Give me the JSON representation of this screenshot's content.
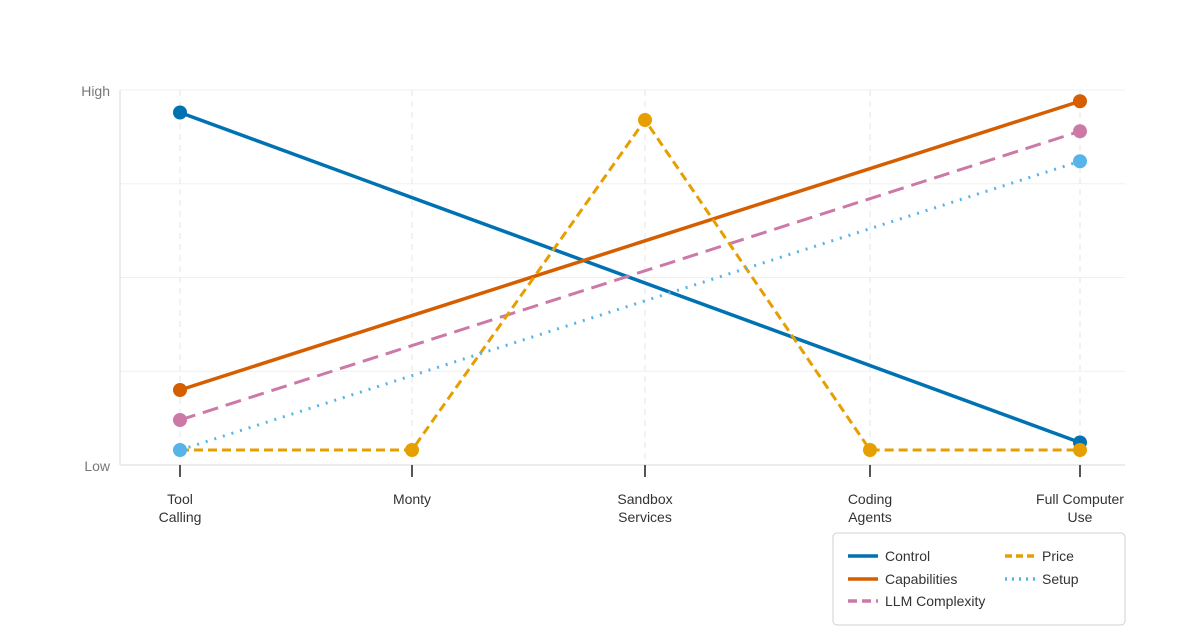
{
  "chart_data": {
    "type": "line",
    "title": "",
    "xlabel": "",
    "ylabel": "",
    "categories": [
      [
        "Tool",
        "Calling"
      ],
      [
        "Monty"
      ],
      [
        "Sandbox",
        "Services"
      ],
      [
        "Coding",
        "Agents"
      ],
      [
        "Full Computer",
        "Use"
      ]
    ],
    "y_tick_labels": {
      "low": "Low",
      "high": "High"
    },
    "ylim": [
      0,
      1
    ],
    "grid": true,
    "legend_position": "bottom-right",
    "series": [
      {
        "name": "Control",
        "color": "#0072B2",
        "dash": "solid",
        "x": [
          0,
          4
        ],
        "values": [
          0.94,
          0.06
        ],
        "markers": [
          0,
          4
        ]
      },
      {
        "name": "Capabilities",
        "color": "#D55E00",
        "dash": "solid",
        "x": [
          0,
          4
        ],
        "values": [
          0.2,
          0.97
        ],
        "markers": [
          0,
          4
        ]
      },
      {
        "name": "LLM Complexity",
        "color": "#CC79A7",
        "dash": "longdash",
        "x": [
          0,
          4
        ],
        "values": [
          0.12,
          0.89
        ],
        "markers": [
          0,
          4
        ]
      },
      {
        "name": "Price",
        "color": "#E69F00",
        "dash": "dash",
        "x": [
          0,
          1,
          2,
          3,
          4
        ],
        "values": [
          0.04,
          0.04,
          0.92,
          0.04,
          0.04
        ],
        "markers": [
          1,
          2,
          3,
          4
        ]
      },
      {
        "name": "Setup",
        "color": "#56B4E9",
        "dash": "dot",
        "x": [
          0,
          4
        ],
        "values": [
          0.04,
          0.81
        ],
        "markers": [
          0,
          4
        ]
      }
    ],
    "legend_order": [
      "Control",
      "Capabilities",
      "LLM Complexity",
      "Price",
      "Setup"
    ]
  }
}
